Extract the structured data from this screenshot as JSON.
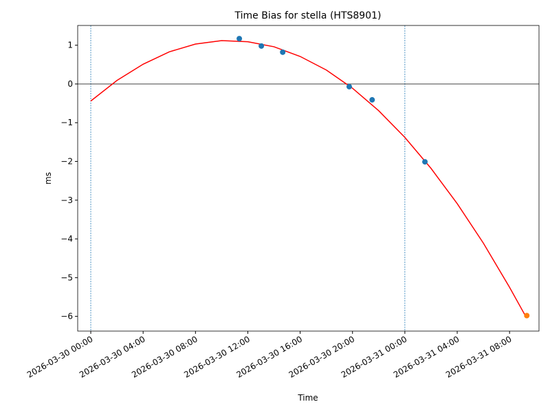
{
  "chart_data": {
    "type": "scatter",
    "title": "Time Bias for stella (HTS8901)",
    "xlabel": "Time",
    "ylabel": "ms",
    "xlim": [
      "2026-03-29 23:00",
      "2026-03-31 10:15"
    ],
    "xticks": [
      "2026-03-30 00:00",
      "2026-03-30 04:00",
      "2026-03-30 08:00",
      "2026-03-30 12:00",
      "2026-03-30 16:00",
      "2026-03-30 20:00",
      "2026-03-31 00:00",
      "2026-03-31 04:00",
      "2026-03-31 08:00"
    ],
    "ylim": [
      -6.38,
      1.51
    ],
    "yticks": [
      {
        "value": -6,
        "label": "−6"
      },
      {
        "value": -5,
        "label": "−5"
      },
      {
        "value": -4,
        "label": "−4"
      },
      {
        "value": -3,
        "label": "−3"
      },
      {
        "value": -2,
        "label": "−2"
      },
      {
        "value": -1,
        "label": "−1"
      },
      0,
      1
    ],
    "vlines": [
      "2026-03-30 00:00",
      "2026-03-31 00:00"
    ],
    "vline_color": "#1f77b4",
    "hline": 0,
    "series": [
      {
        "type": "line",
        "color": "#ff0000",
        "x": [
          "2026-03-30 00:00",
          "2026-03-30 02:00",
          "2026-03-30 04:00",
          "2026-03-30 06:00",
          "2026-03-30 08:00",
          "2026-03-30 10:00",
          "2026-03-30 12:00",
          "2026-03-30 14:00",
          "2026-03-30 16:00",
          "2026-03-30 18:00",
          "2026-03-30 20:00",
          "2026-03-30 22:00",
          "2026-03-31 00:00",
          "2026-03-31 02:00",
          "2026-03-31 04:00",
          "2026-03-31 06:00",
          "2026-03-31 08:00",
          "2026-03-31 09:18"
        ],
        "values": [
          -0.44,
          0.09,
          0.51,
          0.83,
          1.03,
          1.12,
          1.09,
          0.96,
          0.71,
          0.36,
          -0.11,
          -0.69,
          -1.38,
          -2.18,
          -3.09,
          -4.11,
          -5.25,
          -6.04
        ]
      },
      {
        "type": "scatter",
        "color": "#1f77b4",
        "x": [
          "2026-03-30 11:21",
          "2026-03-30 13:02",
          "2026-03-30 14:40",
          "2026-03-30 19:45",
          "2026-03-30 21:30",
          "2026-03-31 01:32"
        ],
        "values": [
          1.17,
          0.98,
          0.82,
          -0.07,
          -0.41,
          -2.01
        ]
      },
      {
        "type": "scatter",
        "color": "#ff7f0e",
        "x": [
          "2026-03-31 09:19"
        ],
        "values": [
          -5.98
        ]
      }
    ]
  }
}
